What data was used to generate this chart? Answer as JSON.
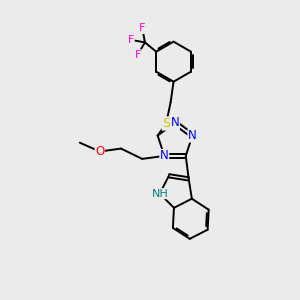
{
  "bg_color": "#ebebeb",
  "bond_color": "#000000",
  "atom_colors": {
    "N": "#0000ff",
    "S": "#cccc00",
    "O": "#ff0000",
    "F": "#ff00cc",
    "H": "#008080",
    "C": "#000000"
  },
  "figsize": [
    3.0,
    3.0
  ],
  "dpi": 100
}
